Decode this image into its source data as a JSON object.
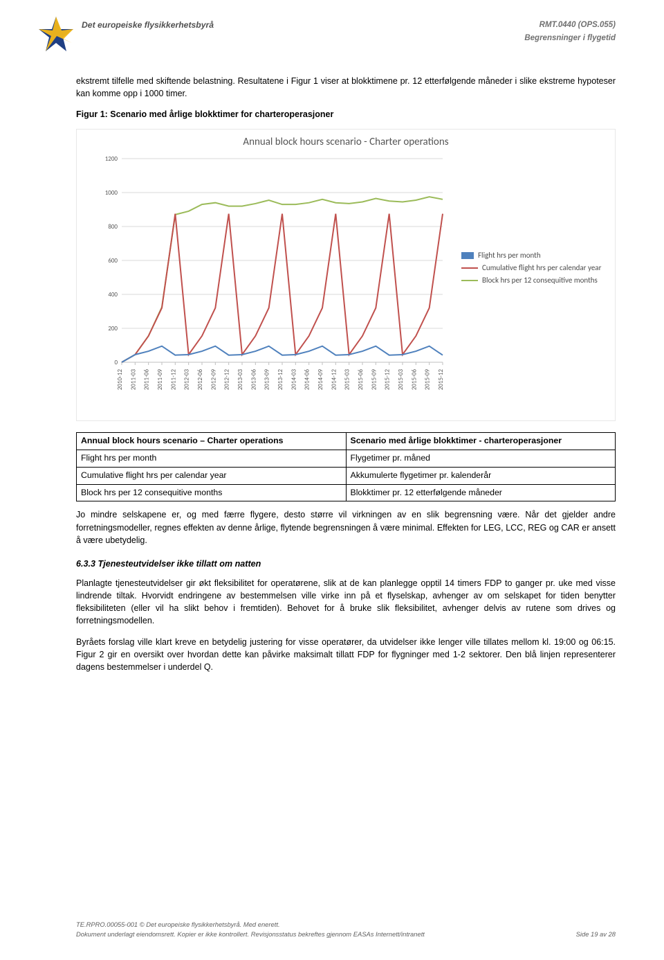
{
  "header": {
    "agency": "Det europeiske flysikkerhetsbyrå",
    "doc_code": "RMT.0440 (OPS.055)",
    "subtitle": "Begrensninger i flygetid"
  },
  "paragraphs": {
    "p1": "ekstremt tilfelle med skiftende belastning. Resultatene i Figur 1 viser at blokktimene pr. 12 etterfølgende måneder i slike ekstreme hypoteser kan komme opp i 1000 timer.",
    "fig_caption": "Figur 1: Scenario med årlige blokktimer for charteroperasjoner",
    "p2": "Jo mindre selskapene er, og med færre flygere, desto større vil virkningen av en slik begrensning være. Når det gjelder andre forretningsmodeller, regnes effekten av denne årlige, flytende begrensningen å være minimal. Effekten for LEG, LCC, REG og CAR er ansett å være ubetydelig.",
    "sec_title": "6.3.3  Tjenesteutvidelser ikke tillatt om natten",
    "p3": "Planlagte tjenesteutvidelser gir økt fleksibilitet for operatørene, slik at de kan planlegge opptil 14 timers FDP to ganger pr. uke med visse lindrende tiltak. Hvorvidt endringene av bestemmelsen ville virke inn på et flyselskap, avhenger av om selskapet for tiden benytter fleksibiliteten (eller vil ha slikt behov i fremtiden). Behovet for å bruke slik fleksibilitet, avhenger delvis av rutene som drives og forretningsmodellen.",
    "p4": "Byråets forslag ville klart kreve en betydelig justering for visse operatører, da utvidelser ikke lenger ville tillates mellom kl. 19:00 og 06:15. Figur 2 gir en oversikt over hvordan dette kan påvirke maksimalt tillatt FDP for flygninger med 1-2 sektorer. Den blå linjen representerer dagens bestemmelser i underdel Q."
  },
  "chart": {
    "title": "Annual block hours scenario - Charter operations",
    "ylim": [
      0,
      1200
    ],
    "ytick_step": 200,
    "grid_color": "#d9d9d9",
    "axis_color": "#bfbfbf",
    "tick_font_size": 9,
    "xlabels": [
      "2010-12",
      "2011-03",
      "2011-06",
      "2011-09",
      "2011-12",
      "2012-03",
      "2012-06",
      "2012-09",
      "2012-12",
      "2013-03",
      "2013-06",
      "2013-09",
      "2013-12",
      "2014-03",
      "2014-06",
      "2014-09",
      "2014-12",
      "2015-03",
      "2015-06",
      "2015-09",
      "2015-12",
      "2015-03",
      "2015-06",
      "2015-09",
      "2015-12"
    ],
    "series": {
      "flight_hrs": {
        "label": "Flight hrs per month",
        "color": "#4f81bd",
        "values": [
          0,
          45,
          65,
          95,
          42,
          45,
          65,
          95,
          42,
          45,
          65,
          95,
          42,
          45,
          65,
          95,
          42,
          45,
          65,
          95,
          42,
          45,
          65,
          95,
          42
        ]
      },
      "cumulative": {
        "label": "Cumulative flight hrs per calendar year",
        "color": "#c0504d",
        "values": [
          0,
          45,
          155,
          320,
          875,
          45,
          155,
          320,
          875,
          45,
          155,
          320,
          875,
          45,
          155,
          320,
          875,
          45,
          155,
          320,
          875,
          45,
          155,
          320,
          875
        ]
      },
      "block12": {
        "label": "Block hrs per 12 consequitive months",
        "color": "#9bbb59",
        "values": [
          0,
          45,
          155,
          325,
          870,
          890,
          930,
          940,
          920,
          920,
          935,
          955,
          930,
          930,
          940,
          960,
          940,
          935,
          945,
          965,
          950,
          945,
          955,
          975,
          960
        ]
      }
    }
  },
  "table": {
    "r1c1": "Annual block hours scenario – Charter operations",
    "r1c2": "Scenario med årlige blokktimer - charteroperasjoner",
    "r2c1": "Flight hrs per month",
    "r2c2": "Flygetimer pr. måned",
    "r3c1": "Cumulative flight hrs per calendar year",
    "r3c2": "Akkumulerte flygetimer pr. kalenderår",
    "r4c1": "Block hrs per 12 consequitive months",
    "r4c2": "Blokktimer pr. 12 etterfølgende måneder"
  },
  "footer": {
    "line1": "TE.RPRO.00055-001 © Det europeiske flysikkerhetsbyrå. Med enerett.",
    "line2_left": "Dokument underlagt eiendomsrett. Kopier er ikke kontrollert. Revisjonsstatus bekreftes gjennom EASAs Internett/intranett",
    "line2_right": "Side 19 av 28"
  }
}
